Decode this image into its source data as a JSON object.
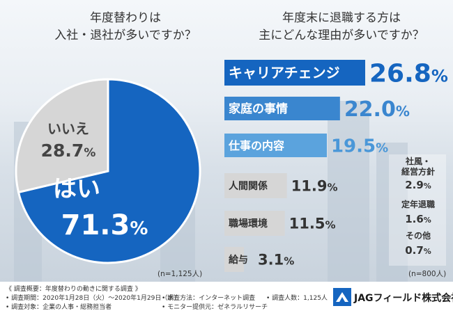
{
  "left_question": [
    "年度替わりは",
    "入社・退社が多いですか？"
  ],
  "right_question": [
    "年度末に退職する方は",
    "主にどんな理由が多いですか？"
  ],
  "left_n": "(n=1,125人)",
  "right_n": "(n=800人)",
  "colors": {
    "blue_dark": "#1565c0",
    "blue_mid": "#3a86cf",
    "blue_light": "#5ba3dd",
    "gray": "#d6d6d6",
    "gray_text": "#444444"
  },
  "chart_data": [
    {
      "type": "pie",
      "categories": [
        "はい",
        "いいえ"
      ],
      "values": [
        71.3,
        28.7
      ],
      "unit": "%"
    },
    {
      "type": "bar",
      "categories": [
        "キャリアチェンジ",
        "家庭の事情",
        "仕事の内容",
        "人間関係",
        "職場環境",
        "給与",
        "社風・経営方針",
        "定年退職",
        "その他"
      ],
      "values": [
        26.8,
        22.0,
        19.5,
        11.9,
        11.5,
        3.1,
        2.9,
        1.6,
        0.7
      ],
      "unit": "%"
    }
  ],
  "footer": {
    "title": "《 調査概要：年度替わりの動きに関する調査 》",
    "period": "• 調査期間：2020年1月28日（火）～2020年1月29日（水）",
    "target": "• 調査対象：企業の人事・総務担当者",
    "method": "• 調査方法：インターネット調査",
    "monitor": "• モニター提供元：ゼネラルリサーチ",
    "count": "• 調査人数：1,125人",
    "logo": "JAGフィールド株式会社"
  }
}
